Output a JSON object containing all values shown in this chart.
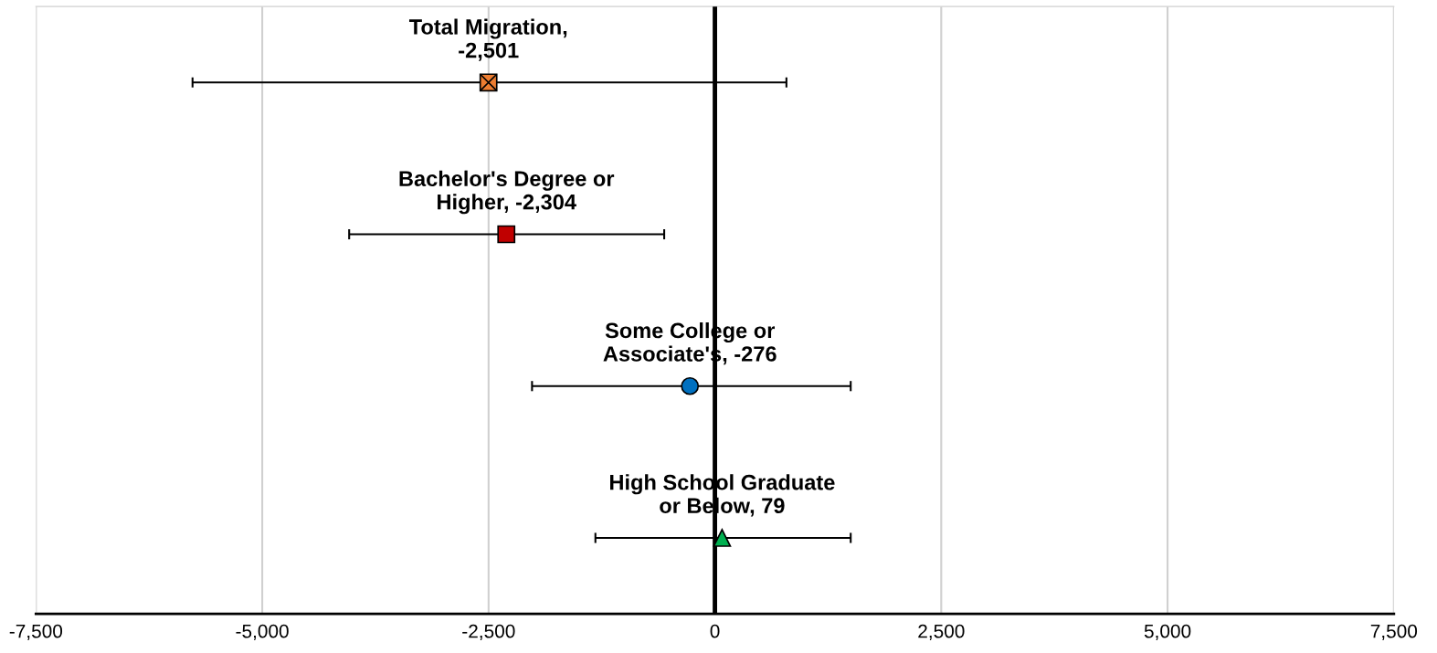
{
  "chart_data": {
    "type": "scatter",
    "orientation": "horizontal",
    "categories": [
      null,
      null,
      null,
      null
    ],
    "xlim": [
      -7500,
      7500
    ],
    "xticks": [
      {
        "value": -7500,
        "label": "-7,500"
      },
      {
        "value": -5000,
        "label": "-5,000"
      },
      {
        "value": -2500,
        "label": "-2,500"
      },
      {
        "value": 0,
        "label": "0"
      },
      {
        "value": 2500,
        "label": "2,500"
      },
      {
        "value": 5000,
        "label": "5,000"
      },
      {
        "value": 7500,
        "label": "7,500"
      }
    ],
    "grid": "x",
    "tick_labels": "x",
    "ref_lines": [
      {
        "axis": "x",
        "value": 0,
        "color": "#000000"
      }
    ],
    "series": [
      {
        "color": "#ed7d31",
        "marker": "square",
        "values": [
          -2501,
          null,
          null,
          null
        ],
        "errors": [
          [
            -5770,
            790
          ],
          null,
          null,
          null
        ]
      },
      {
        "color": "#c00000",
        "marker": "square",
        "values": [
          null,
          -2304,
          null,
          null
        ],
        "errors": [
          null,
          [
            -4040,
            -560
          ],
          null,
          null
        ]
      },
      {
        "color": "#0070c0",
        "marker": "circle",
        "values": [
          null,
          null,
          -276,
          null
        ],
        "errors": [
          null,
          null,
          [
            -2020,
            1500
          ],
          null
        ]
      },
      {
        "color": "#00b050",
        "marker": "triangle",
        "values": [
          null,
          null,
          null,
          79
        ],
        "errors": [
          null,
          null,
          null,
          [
            -1320,
            1500
          ]
        ]
      }
    ],
    "annotations": [
      "Total Migration,\n-2,501",
      "Bachelor's Degree or\nHigher, -2,304",
      "Some College or\nAssociate's, -276",
      "High School Graduate\nor Below, 79"
    ]
  }
}
